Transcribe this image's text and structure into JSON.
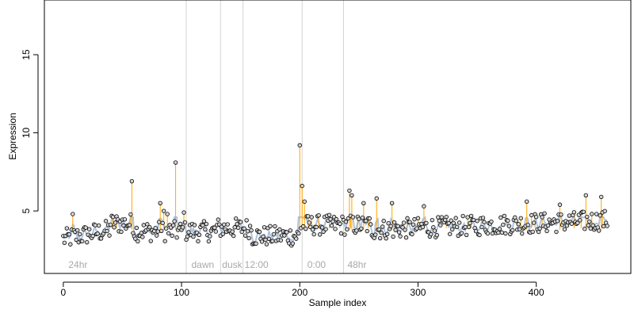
{
  "chart_data": {
    "type": "scatter",
    "xlabel": "Sample index",
    "ylabel": "Expression",
    "xlim": [
      -16,
      480
    ],
    "ylim": [
      1.0,
      18.5
    ],
    "x_ticks": [
      0,
      100,
      200,
      300,
      400
    ],
    "y_ticks": [
      5,
      10,
      15
    ],
    "baseline_series_color": "#b0c4de",
    "point_fill": "#d3d3d3",
    "point_stroke": "#000000",
    "spike_color": "#ffa500",
    "vertical_line_color": "#d3d3d3",
    "annotation_color": "#a9a9a9",
    "grid": false,
    "vertical_lines": [
      104,
      133,
      152,
      202,
      237
    ],
    "annotations": [
      {
        "x": 3,
        "text": "24hr"
      },
      {
        "x": 107,
        "text": "dawn"
      },
      {
        "x": 133,
        "text": "dusk"
      },
      {
        "x": 152,
        "text": "12:00"
      },
      {
        "x": 205,
        "text": "0:00"
      },
      {
        "x": 239,
        "text": "48hr"
      }
    ],
    "spikes": [
      {
        "x": 8,
        "y": 4.8
      },
      {
        "x": 58,
        "y": 6.9
      },
      {
        "x": 82,
        "y": 5.5
      },
      {
        "x": 85,
        "y": 5.0
      },
      {
        "x": 88,
        "y": 4.8
      },
      {
        "x": 95,
        "y": 8.1
      },
      {
        "x": 102,
        "y": 4.9
      },
      {
        "x": 200,
        "y": 9.2
      },
      {
        "x": 202,
        "y": 6.6
      },
      {
        "x": 204,
        "y": 5.6
      },
      {
        "x": 242,
        "y": 6.3
      },
      {
        "x": 244,
        "y": 6.0
      },
      {
        "x": 254,
        "y": 5.5
      },
      {
        "x": 265,
        "y": 5.8
      },
      {
        "x": 278,
        "y": 5.5
      },
      {
        "x": 305,
        "y": 5.3
      },
      {
        "x": 392,
        "y": 5.6
      },
      {
        "x": 420,
        "y": 5.4
      },
      {
        "x": 442,
        "y": 6.0
      },
      {
        "x": 455,
        "y": 5.9
      }
    ]
  }
}
